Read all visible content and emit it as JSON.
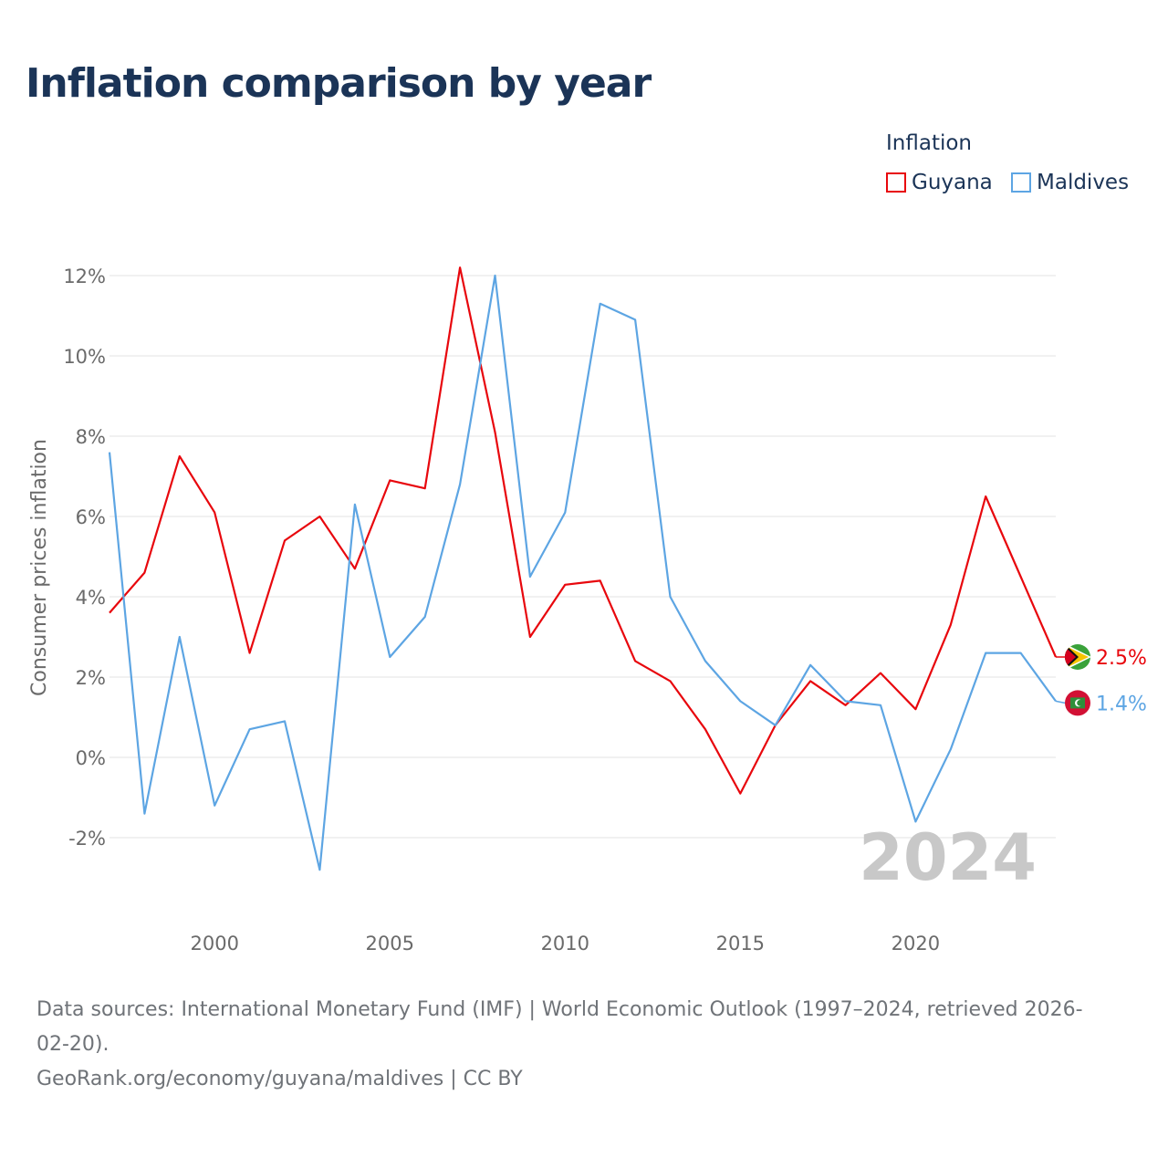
{
  "title": "Inflation comparison by year",
  "legend": {
    "title": "Inflation",
    "items": [
      {
        "name": "Guyana",
        "color": "#e8070d"
      },
      {
        "name": "Maldives",
        "color": "#5da5e3"
      }
    ]
  },
  "year_label": "2024",
  "sources": {
    "line1": "Data sources: International Monetary Fund (IMF) | World Economic Outlook (1997–2024, retrieved 2026-",
    "line2": "02-20).",
    "line3": "GeoRank.org/economy/guyana/maldives | CC BY"
  },
  "chart_data": {
    "type": "line",
    "title": "Inflation comparison by year",
    "xlabel": "",
    "ylabel": "Consumer prices inflation",
    "x": [
      1997,
      1998,
      1999,
      2000,
      2001,
      2002,
      2003,
      2004,
      2005,
      2006,
      2007,
      2008,
      2009,
      2010,
      2011,
      2012,
      2013,
      2014,
      2015,
      2016,
      2017,
      2018,
      2019,
      2020,
      2021,
      2022,
      2023,
      2024
    ],
    "xlim": [
      1997,
      2024
    ],
    "ylim": [
      -3,
      12.5
    ],
    "x_ticks": [
      2000,
      2005,
      2010,
      2015,
      2020
    ],
    "x_tick_labels": [
      "2000",
      "2005",
      "2010",
      "2015",
      "2020"
    ],
    "y_ticks": [
      -2,
      0,
      2,
      4,
      6,
      8,
      10,
      12
    ],
    "y_tick_labels": [
      "-2%",
      "0%",
      "2%",
      "4%",
      "6%",
      "8%",
      "10%",
      "12%"
    ],
    "grid": true,
    "series": [
      {
        "name": "Guyana",
        "color": "#e8070d",
        "end_label": "2.5%",
        "values": [
          3.6,
          4.6,
          7.5,
          6.1,
          2.6,
          5.4,
          6.0,
          4.7,
          6.9,
          6.7,
          12.2,
          8.1,
          3.0,
          4.3,
          4.4,
          2.4,
          1.9,
          0.7,
          -0.9,
          0.8,
          1.9,
          1.3,
          2.1,
          1.2,
          3.3,
          6.5,
          4.5,
          2.5
        ]
      },
      {
        "name": "Maldives",
        "color": "#5da5e3",
        "end_label": "1.4%",
        "values": [
          7.6,
          -1.4,
          3.0,
          -1.2,
          0.7,
          0.9,
          -2.8,
          6.3,
          2.5,
          3.5,
          6.8,
          12.0,
          4.5,
          6.1,
          11.3,
          10.9,
          4.0,
          2.4,
          1.4,
          0.8,
          2.3,
          1.4,
          1.3,
          -1.6,
          0.2,
          2.6,
          2.6,
          1.4
        ]
      }
    ]
  }
}
